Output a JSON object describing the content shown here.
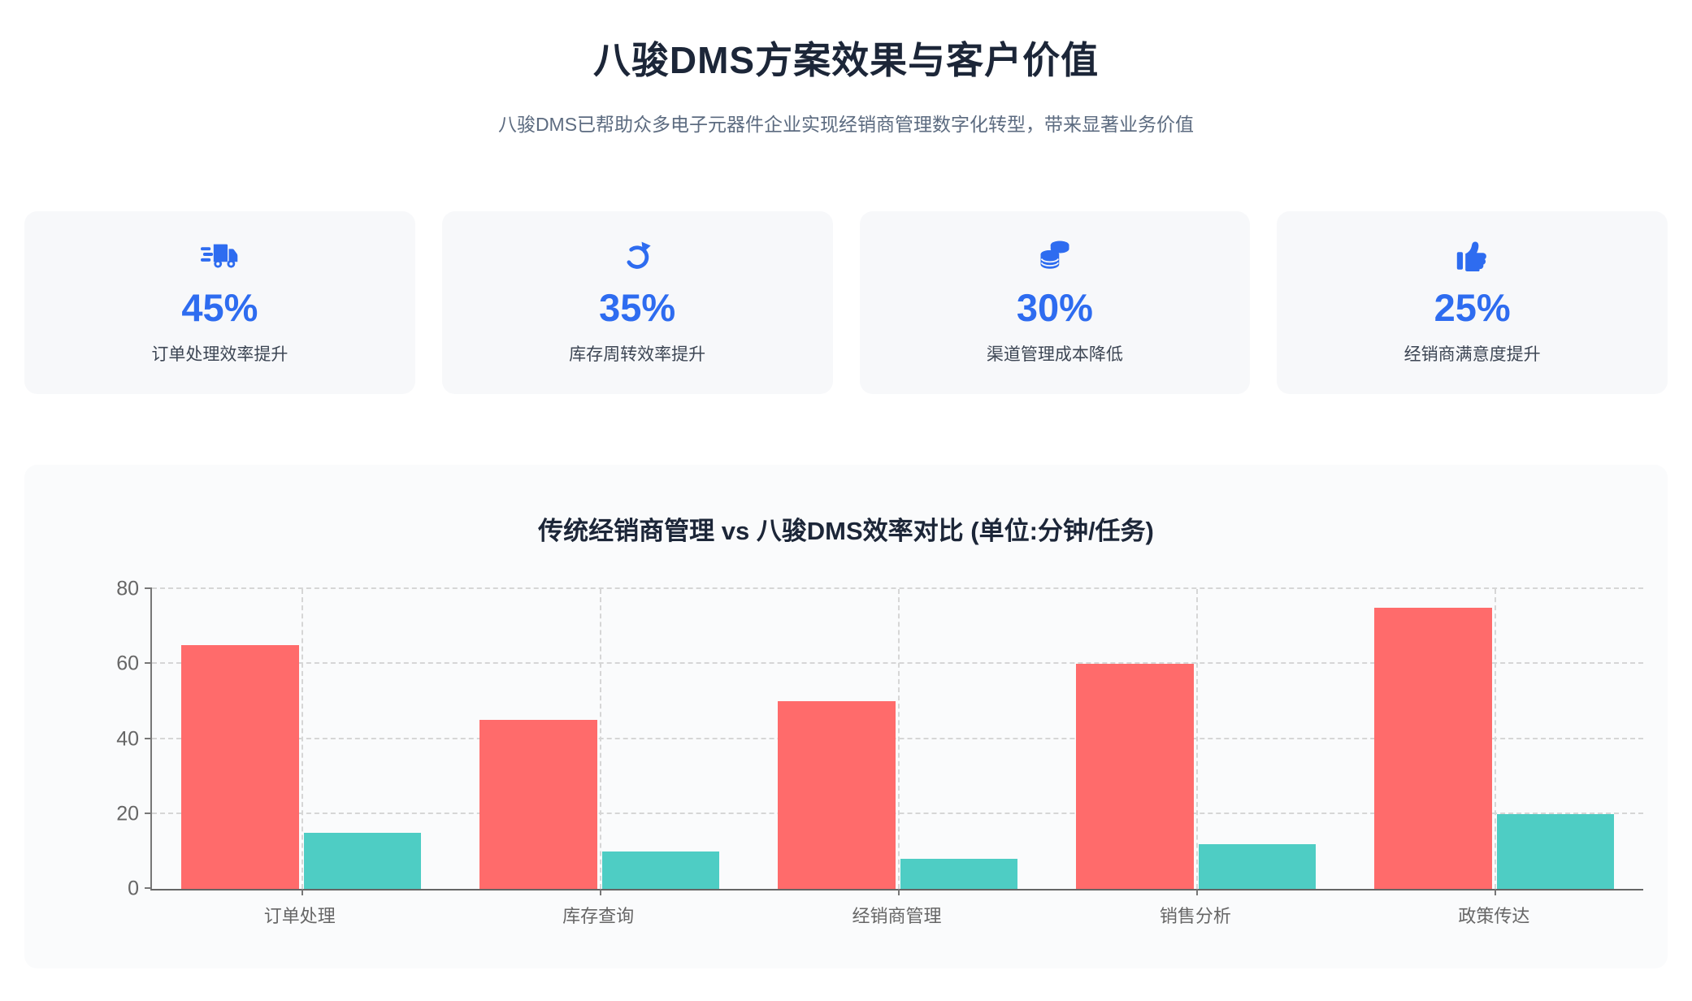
{
  "header": {
    "title": "八骏DMS方案效果与客户价值",
    "subtitle": "八骏DMS已帮助众多电子元器件企业实现经销商管理数字化转型，带来显著业务价值"
  },
  "colors": {
    "accent_blue": "#2e6cf0",
    "bar_traditional_red": "#ff6b6b",
    "bar_dms_teal": "#4ecdc4",
    "card_bg": "#f7f8fa",
    "chart_card_bg": "#fafbfc",
    "heading_dark": "#1c2638",
    "axis_text": "#666666"
  },
  "stats": [
    {
      "icon": "truck-fast-icon",
      "value": "45%",
      "label": "订单处理效率提升"
    },
    {
      "icon": "rotate-icon",
      "value": "35%",
      "label": "库存周转效率提升"
    },
    {
      "icon": "coins-icon",
      "value": "30%",
      "label": "渠道管理成本降低"
    },
    {
      "icon": "thumbs-up-icon",
      "value": "25%",
      "label": "经销商满意度提升"
    }
  ],
  "chart_data": {
    "type": "bar",
    "title": "传统经销商管理 vs 八骏DMS效率对比 (单位:分钟/任务)",
    "categories": [
      "订单处理",
      "库存查询",
      "经销商管理",
      "销售分析",
      "政策传达"
    ],
    "series": [
      {
        "name": "传统经销商管理",
        "color": "#ff6b6b",
        "values": [
          65,
          45,
          50,
          60,
          75
        ]
      },
      {
        "name": "八骏DMS",
        "color": "#4ecdc4",
        "values": [
          15,
          10,
          8,
          12,
          20
        ]
      }
    ],
    "xlabel": "",
    "ylabel": "",
    "ylim": [
      0,
      80
    ],
    "yticks": [
      0,
      20,
      40,
      60,
      80
    ],
    "grid": "dashed",
    "legend_position": "none"
  }
}
